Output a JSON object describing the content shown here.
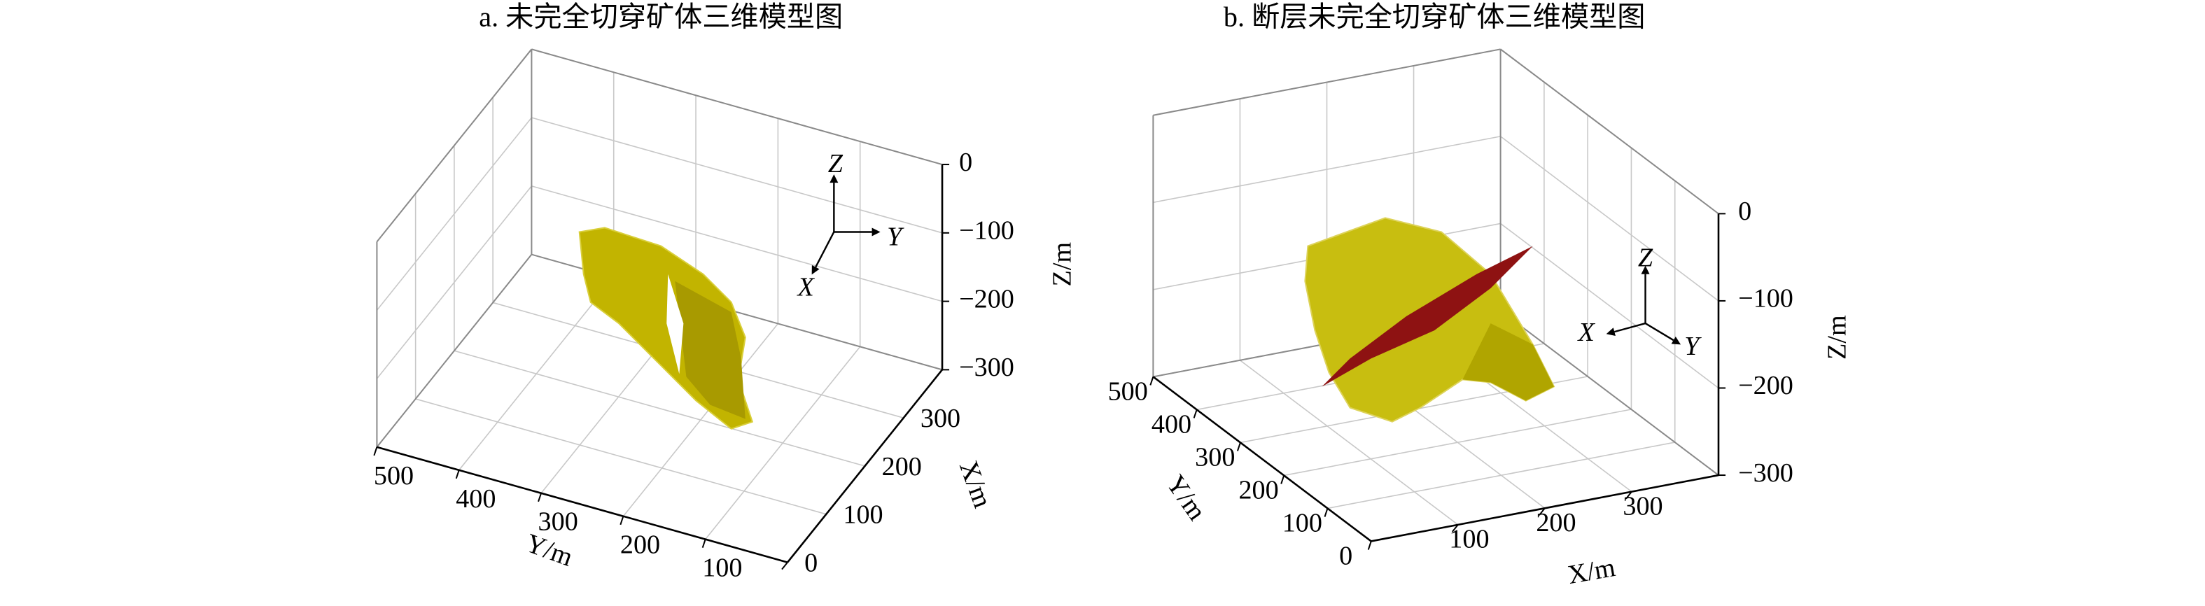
{
  "chart_data": [
    {
      "type": "surface3d",
      "title": "a. 未完全切穿矿体三维模型图",
      "xlabel": "X/m",
      "ylabel": "Y/m",
      "zlabel": "Z/m",
      "xlim": [
        0,
        400
      ],
      "ylim": [
        0,
        500
      ],
      "zlim": [
        -300,
        0
      ],
      "xticks": [
        0,
        100,
        200,
        300
      ],
      "yticks": [
        100,
        200,
        300,
        400,
        500
      ],
      "zticks": [
        {
          "value": -300,
          "label": "−300"
        },
        {
          "value": -200,
          "label": "−200"
        },
        {
          "value": -100,
          "label": "−100"
        },
        0
      ],
      "orientation_labels": {
        "x": "X",
        "y": "Y",
        "z": "Z"
      },
      "grid": true
    },
    {
      "type": "surface3d",
      "title": "b. 断层未完全切穿矿体三维模型图",
      "xlabel": "X/m",
      "ylabel": "Y/m",
      "zlabel": "Z/m",
      "xlim": [
        0,
        400
      ],
      "ylim": [
        0,
        500
      ],
      "zlim": [
        -300,
        0
      ],
      "xticks": [
        100,
        200,
        300
      ],
      "yticks": [
        0,
        100,
        200,
        300,
        400,
        500
      ],
      "zticks": [
        {
          "value": -300,
          "label": "−300"
        },
        {
          "value": -200,
          "label": "−200"
        },
        {
          "value": -100,
          "label": "−100"
        },
        0
      ],
      "orientation_labels": {
        "x": "X",
        "y": "Y",
        "z": "Z"
      },
      "grid": true
    }
  ]
}
